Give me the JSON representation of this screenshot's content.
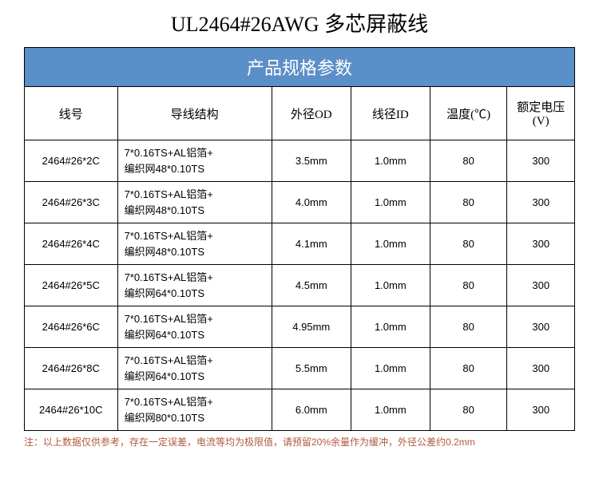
{
  "title": "UL2464#26AWG 多芯屏蔽线",
  "table_header": "产品规格参数",
  "columns": {
    "wire_no": "线号",
    "structure": "导线结构",
    "od": "外径OD",
    "id": "线径ID",
    "temp": "温度(℃)",
    "voltage": "额定电压(V)"
  },
  "rows": [
    {
      "wire_no": "2464#26*2C",
      "struct_l1": "7*0.16TS+AL铝箔+",
      "struct_l2": "编织网48*0.10TS",
      "od": "3.5mm",
      "id": "1.0mm",
      "temp": "80",
      "voltage": "300"
    },
    {
      "wire_no": "2464#26*3C",
      "struct_l1": "7*0.16TS+AL铝箔+",
      "struct_l2": "编织网48*0.10TS",
      "od": "4.0mm",
      "id": "1.0mm",
      "temp": "80",
      "voltage": "300"
    },
    {
      "wire_no": "2464#26*4C",
      "struct_l1": "7*0.16TS+AL铝箔+",
      "struct_l2": "编织网48*0.10TS",
      "od": "4.1mm",
      "id": "1.0mm",
      "temp": "80",
      "voltage": "300"
    },
    {
      "wire_no": "2464#26*5C",
      "struct_l1": "7*0.16TS+AL铝箔+",
      "struct_l2": "编织网64*0.10TS",
      "od": "4.5mm",
      "id": "1.0mm",
      "temp": "80",
      "voltage": "300"
    },
    {
      "wire_no": "2464#26*6C",
      "struct_l1": "7*0.16TS+AL铝箔+",
      "struct_l2": "编织网64*0.10TS",
      "od": "4.95mm",
      "id": "1.0mm",
      "temp": "80",
      "voltage": "300"
    },
    {
      "wire_no": "2464#26*8C",
      "struct_l1": "7*0.16TS+AL铝箔+",
      "struct_l2": "编织网64*0.10TS",
      "od": "5.5mm",
      "id": "1.0mm",
      "temp": "80",
      "voltage": "300"
    },
    {
      "wire_no": "2464#26*10C",
      "struct_l1": "7*0.16TS+AL铝箔+",
      "struct_l2": "编织网80*0.10TS",
      "od": "6.0mm",
      "id": "1.0mm",
      "temp": "80",
      "voltage": "300"
    }
  ],
  "footnote": "注：以上数据仅供参考，存在一定误差，电流等均为极限值，请预留20%余量作为缓冲，外径公差约0.2mm",
  "styles": {
    "header_bg": "#5b8fc7",
    "header_fg": "#ffffff",
    "border_color": "#000000",
    "footnote_color": "#b05a3c",
    "title_fontsize": 26,
    "header_fontsize": 22,
    "colheader_fontsize": 15,
    "cell_fontsize": 13,
    "footnote_fontsize": 12,
    "column_widths": {
      "wire_no": 92,
      "structure": 160,
      "od": 82,
      "id": 82,
      "temp": 80,
      "voltage": 70
    }
  }
}
